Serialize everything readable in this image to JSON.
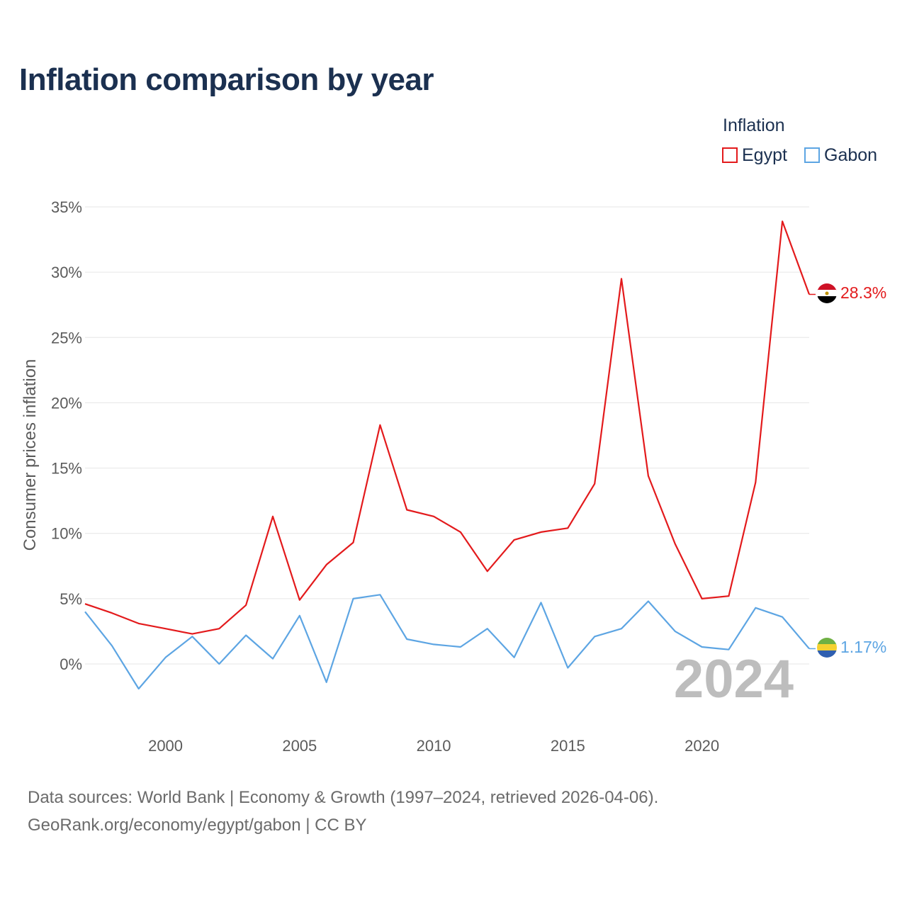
{
  "chart_data": {
    "type": "line",
    "title": "Inflation comparison by year",
    "xlabel": "",
    "ylabel": "Consumer prices inflation",
    "legend_title": "Inflation",
    "legend_position": "top-right",
    "current_year_label": "2024",
    "x": [
      1997,
      1998,
      1999,
      2000,
      2001,
      2002,
      2003,
      2004,
      2005,
      2006,
      2007,
      2008,
      2009,
      2010,
      2011,
      2012,
      2013,
      2014,
      2015,
      2016,
      2017,
      2018,
      2019,
      2020,
      2021,
      2022,
      2023,
      2024
    ],
    "xlim": [
      1997,
      2024
    ],
    "ylim": [
      -4,
      35
    ],
    "x_ticks": [
      2000,
      2005,
      2010,
      2015,
      2020
    ],
    "x_tick_labels": [
      "2000",
      "2005",
      "2010",
      "2015",
      "2020"
    ],
    "y_ticks": [
      0,
      5,
      10,
      15,
      20,
      25,
      30,
      35
    ],
    "y_tick_labels": [
      "0%",
      "5%",
      "10%",
      "15%",
      "20%",
      "25%",
      "30%",
      "35%"
    ],
    "grid": true,
    "series": [
      {
        "name": "Egypt",
        "color": "#e31a1c",
        "end_label": "28.3%",
        "values": [
          4.6,
          3.9,
          3.1,
          2.7,
          2.3,
          2.7,
          4.5,
          11.3,
          4.9,
          7.6,
          9.3,
          18.3,
          11.8,
          11.3,
          10.1,
          7.1,
          9.5,
          10.1,
          10.4,
          13.8,
          29.5,
          14.4,
          9.2,
          5.0,
          5.2,
          13.9,
          33.9,
          28.3
        ]
      },
      {
        "name": "Gabon",
        "color": "#5da5e3",
        "end_label": "1.17%",
        "values": [
          4.0,
          1.4,
          -1.9,
          0.5,
          2.1,
          0.0,
          2.2,
          0.4,
          3.7,
          -1.4,
          5.0,
          5.3,
          1.9,
          1.5,
          1.3,
          2.7,
          0.5,
          4.7,
          -0.3,
          2.1,
          2.7,
          4.8,
          2.5,
          1.3,
          1.1,
          4.3,
          3.6,
          1.17
        ]
      }
    ]
  },
  "footer": {
    "line1": "Data sources: World Bank | Economy & Growth (1997–2024, retrieved 2026-04-06).",
    "line2": "GeoRank.org/economy/egypt/gabon | CC BY"
  },
  "flags": {
    "egypt": "egypt-flag-icon",
    "gabon": "gabon-flag-icon"
  }
}
